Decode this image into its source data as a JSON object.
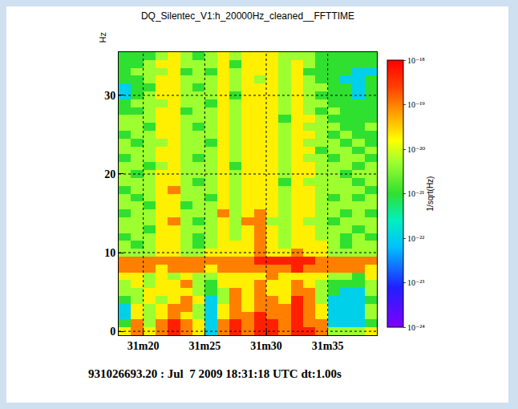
{
  "chart_data": {
    "type": "heatmap",
    "title": "DQ_Silentec_V1:h_20000Hz_cleaned__FFTTIME",
    "y_label": "Hz",
    "note": "931026693.20 : Jul  7 2009 18:31:18 UTC dt:1.00s",
    "color_label": "1/sqrt(Hz)",
    "xlim": [
      18,
      39
    ],
    "ylim": [
      -0.5,
      35.5
    ],
    "xticks": [
      {
        "value": 20,
        "label": "31m20"
      },
      {
        "value": 25,
        "label": "31m25"
      },
      {
        "value": 30,
        "label": "31m30"
      },
      {
        "value": 35,
        "label": "31m35"
      }
    ],
    "yticks": [
      0,
      10,
      20,
      30
    ],
    "grid": true,
    "color_range": [
      1e-24,
      1e-18
    ],
    "color_ticks": [
      {
        "value": 1e-24,
        "label": "10⁻²⁴"
      },
      {
        "value": 1e-23,
        "label": "10⁻²³"
      },
      {
        "value": 1e-22,
        "label": "10⁻²²"
      },
      {
        "value": 1e-21,
        "label": "10⁻²¹"
      },
      {
        "value": 1e-20,
        "label": "10⁻²⁰"
      },
      {
        "value": 1e-19,
        "label": "10⁻¹⁹"
      },
      {
        "value": 1e-18,
        "label": "10⁻¹⁸"
      }
    ],
    "x": [
      18.5,
      19.5,
      20.5,
      21.5,
      22.5,
      23.5,
      24.5,
      25.5,
      26.5,
      27.5,
      28.5,
      29.5,
      30.5,
      31.5,
      32.5,
      33.5,
      34.5,
      35.5,
      36.5,
      37.5,
      38.5
    ],
    "y": [
      0,
      1,
      2,
      3,
      4,
      5,
      6,
      7,
      8,
      9,
      10,
      11,
      12,
      13,
      14,
      15,
      16,
      17,
      18,
      19,
      20,
      21,
      22,
      23,
      24,
      25,
      26,
      27,
      28,
      29,
      30,
      31,
      32,
      33,
      34,
      35
    ],
    "z": [
      [
        2e-20,
        1e-19,
        2e-20,
        1e-19,
        5e-19,
        1e-19,
        2e-20,
        1e-22,
        1e-19,
        5e-19,
        1e-19,
        5e-19,
        5e-19,
        1e-19,
        5e-19,
        5e-19,
        1e-19,
        5e-21,
        5e-21,
        5e-21,
        2e-20
      ],
      [
        1e-21,
        1e-19,
        5e-21,
        1e-19,
        5e-19,
        1e-19,
        2e-20,
        1e-22,
        1e-19,
        5e-19,
        1e-19,
        5e-19,
        5e-19,
        1e-19,
        5e-19,
        1e-19,
        1e-19,
        1e-22,
        1e-22,
        1e-22,
        1e-21
      ],
      [
        1e-22,
        2e-20,
        5e-21,
        2e-20,
        1e-19,
        2e-20,
        5e-21,
        1e-22,
        2e-20,
        1e-19,
        1e-19,
        5e-19,
        1e-19,
        1e-19,
        5e-19,
        1e-19,
        2e-20,
        1e-22,
        1e-22,
        1e-22,
        5e-21
      ],
      [
        1e-22,
        2e-20,
        5e-21,
        2e-20,
        1e-19,
        1e-19,
        5e-21,
        1e-22,
        2e-20,
        1e-19,
        2e-20,
        1e-19,
        1e-19,
        1e-19,
        5e-19,
        1e-19,
        2e-20,
        1e-22,
        1e-22,
        1e-22,
        5e-21
      ],
      [
        1e-21,
        5e-21,
        2e-20,
        5e-21,
        2e-20,
        1e-19,
        2e-20,
        1e-22,
        5e-21,
        1e-19,
        2e-20,
        1e-19,
        1e-19,
        2e-20,
        5e-19,
        1e-19,
        5e-21,
        1e-22,
        1e-22,
        1e-22,
        1e-21
      ],
      [
        5e-21,
        5e-21,
        2e-20,
        2e-20,
        2e-20,
        2e-20,
        5e-21,
        1e-21,
        5e-21,
        1e-19,
        2e-20,
        1e-19,
        2e-20,
        2e-20,
        1e-19,
        1e-19,
        5e-21,
        1e-21,
        1e-22,
        1e-22,
        5e-21
      ],
      [
        5e-21,
        2e-20,
        5e-21,
        2e-20,
        2e-20,
        1e-19,
        5e-21,
        1e-21,
        2e-20,
        2e-20,
        2e-20,
        1e-19,
        2e-20,
        2e-20,
        1e-19,
        2e-20,
        5e-21,
        1e-21,
        1e-21,
        1e-21,
        5e-21
      ],
      [
        2e-20,
        2e-20,
        5e-21,
        2e-20,
        5e-21,
        2e-20,
        5e-21,
        5e-21,
        2e-20,
        2e-20,
        2e-20,
        2e-20,
        1e-19,
        2e-20,
        2e-20,
        2e-20,
        2e-20,
        5e-21,
        5e-21,
        1e-21,
        2e-20
      ],
      [
        1e-19,
        1e-19,
        1e-19,
        2e-20,
        1e-19,
        1e-19,
        1e-19,
        2e-20,
        1e-19,
        1e-19,
        1e-19,
        1e-19,
        1e-19,
        1e-19,
        5e-19,
        1e-19,
        1e-19,
        1e-19,
        1e-19,
        1e-19,
        2e-20
      ],
      [
        1e-19,
        1e-19,
        1e-19,
        1e-19,
        1e-19,
        1e-19,
        1e-19,
        1e-19,
        1e-19,
        1e-19,
        1e-19,
        5e-19,
        5e-19,
        5e-19,
        5e-19,
        5e-19,
        1e-19,
        1e-19,
        1e-19,
        1e-19,
        1e-19
      ],
      [
        5e-21,
        5e-21,
        5e-21,
        2e-20,
        2e-20,
        5e-21,
        5e-21,
        2e-20,
        2e-20,
        2e-20,
        2e-20,
        1e-19,
        2e-20,
        2e-20,
        1e-19,
        2e-20,
        2e-20,
        5e-21,
        5e-21,
        5e-21,
        5e-21
      ],
      [
        5e-21,
        1e-21,
        5e-21,
        2e-20,
        2e-20,
        5e-21,
        1e-21,
        5e-21,
        2e-20,
        2e-20,
        2e-20,
        1e-19,
        2e-20,
        5e-21,
        2e-20,
        2e-20,
        2e-20,
        5e-21,
        1e-21,
        5e-21,
        5e-21
      ],
      [
        1e-21,
        5e-21,
        5e-21,
        2e-20,
        2e-20,
        5e-21,
        1e-21,
        5e-21,
        2e-20,
        5e-21,
        2e-20,
        1e-19,
        2e-20,
        5e-21,
        2e-20,
        2e-20,
        5e-21,
        5e-21,
        1e-21,
        5e-21,
        1e-21
      ],
      [
        5e-21,
        5e-21,
        1e-21,
        2e-20,
        2e-20,
        5e-21,
        5e-21,
        5e-21,
        2e-20,
        5e-21,
        2e-20,
        1e-19,
        2e-20,
        5e-21,
        2e-20,
        2e-20,
        5e-21,
        5e-21,
        5e-21,
        1e-21,
        5e-21
      ],
      [
        5e-21,
        5e-21,
        5e-21,
        2e-20,
        1e-19,
        5e-21,
        1e-21,
        5e-21,
        2e-20,
        5e-21,
        1e-19,
        1e-19,
        5e-21,
        5e-21,
        2e-20,
        5e-21,
        5e-21,
        1e-21,
        5e-21,
        5e-21,
        5e-21
      ],
      [
        1e-21,
        5e-21,
        5e-21,
        2e-20,
        2e-20,
        5e-21,
        5e-21,
        5e-21,
        1e-19,
        5e-21,
        2e-20,
        1e-19,
        2e-20,
        5e-21,
        2e-20,
        2e-20,
        5e-21,
        5e-21,
        1e-21,
        5e-21,
        1e-21
      ],
      [
        5e-21,
        5e-21,
        1e-21,
        2e-20,
        2e-20,
        1e-21,
        5e-21,
        5e-21,
        2e-20,
        5e-21,
        2e-20,
        2e-20,
        2e-20,
        5e-21,
        2e-20,
        2e-20,
        5e-21,
        5e-21,
        5e-21,
        5e-21,
        5e-21
      ],
      [
        5e-21,
        1e-21,
        5e-21,
        2e-20,
        2e-20,
        5e-21,
        5e-21,
        1e-21,
        2e-20,
        5e-21,
        2e-20,
        2e-20,
        2e-20,
        5e-21,
        2e-20,
        2e-20,
        5e-21,
        1e-21,
        5e-21,
        1e-21,
        5e-21
      ],
      [
        1e-21,
        5e-21,
        5e-21,
        2e-20,
        1e-19,
        5e-21,
        5e-21,
        5e-21,
        2e-20,
        5e-21,
        2e-20,
        2e-20,
        2e-20,
        5e-21,
        2e-20,
        2e-20,
        5e-21,
        5e-21,
        5e-21,
        5e-21,
        1e-21
      ],
      [
        5e-21,
        5e-21,
        5e-21,
        2e-20,
        2e-20,
        5e-21,
        1e-21,
        5e-21,
        2e-20,
        5e-21,
        2e-20,
        2e-20,
        2e-20,
        1e-21,
        2e-20,
        5e-21,
        5e-21,
        5e-21,
        5e-21,
        1e-21,
        5e-21
      ],
      [
        5e-21,
        1e-21,
        5e-21,
        2e-20,
        2e-20,
        5e-21,
        5e-21,
        5e-21,
        2e-20,
        5e-21,
        2e-20,
        2e-20,
        2e-20,
        5e-21,
        2e-20,
        2e-20,
        5e-21,
        5e-21,
        1e-21,
        5e-21,
        5e-21
      ],
      [
        5e-21,
        5e-21,
        1e-21,
        5e-21,
        2e-20,
        5e-21,
        5e-21,
        5e-21,
        2e-20,
        1e-21,
        2e-20,
        2e-20,
        2e-20,
        5e-21,
        2e-20,
        2e-20,
        5e-21,
        5e-21,
        5e-21,
        1e-21,
        5e-21
      ],
      [
        1e-21,
        5e-21,
        5e-21,
        2e-20,
        2e-20,
        5e-21,
        1e-21,
        5e-21,
        2e-20,
        5e-21,
        2e-20,
        2e-20,
        2e-20,
        5e-21,
        2e-20,
        5e-21,
        5e-21,
        1e-21,
        5e-21,
        5e-21,
        1e-21
      ],
      [
        5e-21,
        5e-21,
        5e-21,
        2e-20,
        2e-20,
        5e-21,
        5e-21,
        5e-21,
        2e-20,
        5e-21,
        2e-20,
        2e-20,
        2e-20,
        5e-21,
        2e-20,
        2e-20,
        1e-21,
        5e-21,
        5e-21,
        1e-21,
        5e-21
      ],
      [
        5e-21,
        1e-21,
        5e-21,
        5e-21,
        2e-20,
        5e-21,
        5e-21,
        1e-21,
        2e-20,
        5e-21,
        2e-20,
        2e-20,
        2e-20,
        5e-21,
        2e-20,
        5e-21,
        5e-21,
        5e-21,
        1e-21,
        5e-21,
        1e-21
      ],
      [
        1e-21,
        5e-21,
        5e-21,
        2e-20,
        2e-20,
        5e-21,
        5e-21,
        5e-21,
        2e-20,
        5e-21,
        2e-20,
        2e-20,
        2e-20,
        5e-21,
        2e-20,
        2e-20,
        5e-21,
        1e-21,
        5e-21,
        1e-21,
        1e-21
      ],
      [
        5e-21,
        5e-21,
        1e-21,
        2e-20,
        2e-20,
        5e-21,
        1e-21,
        5e-21,
        2e-20,
        5e-21,
        2e-20,
        2e-20,
        2e-20,
        5e-21,
        2e-20,
        5e-21,
        5e-21,
        5e-21,
        1e-21,
        1e-21,
        5e-21
      ],
      [
        5e-21,
        5e-21,
        5e-21,
        2e-20,
        2e-20,
        5e-21,
        5e-21,
        5e-21,
        2e-20,
        5e-21,
        2e-20,
        2e-20,
        2e-20,
        1e-21,
        2e-20,
        2e-20,
        5e-21,
        1e-21,
        1e-21,
        1e-21,
        1e-21
      ],
      [
        1e-21,
        1e-21,
        5e-21,
        2e-20,
        2e-20,
        1e-21,
        5e-21,
        5e-21,
        2e-20,
        5e-21,
        2e-20,
        2e-20,
        2e-20,
        5e-21,
        2e-20,
        5e-21,
        1e-21,
        5e-21,
        1e-21,
        1e-21,
        1e-21
      ],
      [
        1e-21,
        5e-21,
        5e-21,
        5e-21,
        2e-20,
        5e-21,
        5e-21,
        1e-21,
        2e-20,
        5e-21,
        2e-20,
        2e-20,
        2e-20,
        5e-21,
        2e-20,
        5e-21,
        5e-21,
        1e-21,
        1e-21,
        1e-21,
        1e-21
      ],
      [
        1e-22,
        1e-21,
        5e-21,
        2e-20,
        2e-20,
        5e-21,
        5e-21,
        5e-21,
        2e-20,
        1e-21,
        2e-20,
        2e-20,
        2e-20,
        5e-21,
        2e-20,
        5e-21,
        1e-21,
        1e-21,
        1e-21,
        1e-22,
        1e-21
      ],
      [
        1e-22,
        1e-21,
        1e-21,
        2e-20,
        2e-20,
        5e-21,
        1e-21,
        5e-21,
        2e-20,
        5e-21,
        2e-20,
        2e-20,
        2e-20,
        5e-21,
        2e-20,
        5e-21,
        5e-21,
        1e-21,
        1e-21,
        1e-22,
        1e-21
      ],
      [
        1e-21,
        1e-21,
        5e-21,
        2e-20,
        2e-20,
        5e-21,
        5e-21,
        5e-21,
        2e-20,
        5e-21,
        2e-20,
        5e-21,
        2e-20,
        5e-21,
        2e-20,
        5e-21,
        1e-21,
        1e-21,
        1e-22,
        1e-22,
        1e-21
      ],
      [
        1e-21,
        5e-21,
        5e-21,
        5e-21,
        2e-20,
        1e-21,
        5e-21,
        1e-21,
        2e-20,
        5e-21,
        2e-20,
        2e-20,
        2e-20,
        5e-21,
        2e-20,
        1e-21,
        1e-21,
        1e-21,
        1e-21,
        1e-22,
        1e-22
      ],
      [
        1e-21,
        1e-21,
        5e-21,
        2e-20,
        2e-20,
        5e-21,
        5e-21,
        5e-21,
        2e-20,
        1e-21,
        2e-20,
        2e-20,
        2e-20,
        5e-21,
        2e-20,
        5e-21,
        1e-21,
        1e-21,
        1e-21,
        1e-21,
        1e-21
      ],
      [
        1e-21,
        1e-21,
        1e-21,
        5e-21,
        2e-20,
        5e-21,
        1e-21,
        5e-21,
        2e-20,
        5e-21,
        2e-20,
        2e-20,
        2e-20,
        5e-21,
        5e-21,
        5e-21,
        1e-21,
        1e-21,
        1e-21,
        1e-21,
        1e-21
      ]
    ]
  }
}
